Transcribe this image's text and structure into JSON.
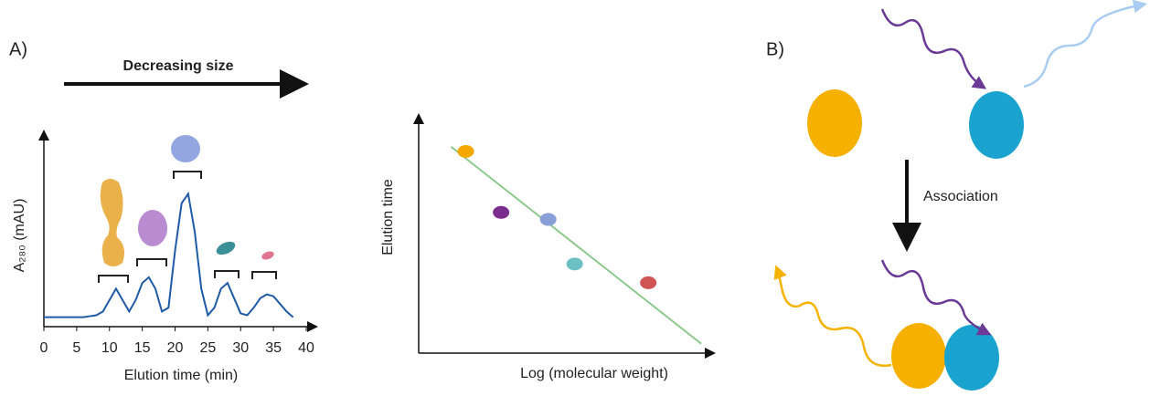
{
  "labels": {
    "panel_a": "A)",
    "panel_b": "B)",
    "size_arrow": "Decreasing size",
    "association": "Association"
  },
  "chart_data": [
    {
      "type": "line",
      "xlabel": "Elution time (min)",
      "ylabel": "A₂₈₀ (mAU)",
      "color": "#1f5aa6",
      "x": [
        0,
        1,
        2,
        3,
        4,
        5,
        6,
        7,
        8,
        9,
        10,
        11,
        12,
        13,
        14,
        15,
        16,
        17,
        18,
        19,
        20,
        21,
        22,
        23,
        24,
        25,
        26,
        27,
        28,
        29,
        30,
        31,
        32,
        33,
        34,
        35,
        36,
        37,
        38
      ],
      "values": [
        0.05,
        0.05,
        0.05,
        0.05,
        0.05,
        0.05,
        0.05,
        0.055,
        0.06,
        0.08,
        0.14,
        0.2,
        0.14,
        0.08,
        0.14,
        0.23,
        0.26,
        0.2,
        0.08,
        0.1,
        0.4,
        0.65,
        0.7,
        0.5,
        0.2,
        0.06,
        0.1,
        0.2,
        0.23,
        0.15,
        0.07,
        0.06,
        0.1,
        0.15,
        0.17,
        0.16,
        0.12,
        0.08,
        0.05
      ],
      "xlim": [
        0,
        40
      ],
      "ylim": [
        0,
        1
      ],
      "xticks": [
        0,
        5,
        10,
        15,
        20,
        25,
        30,
        35,
        40
      ]
    },
    {
      "type": "scatter",
      "xlabel": "Log (molecular weight)",
      "ylabel": "Elution time",
      "x": [
        1.6,
        2.8,
        4.4,
        5.3,
        7.8
      ],
      "values": [
        8.6,
        6.0,
        5.7,
        3.8,
        3.0
      ],
      "colors": [
        "#f5a800",
        "#7b2d8e",
        "#8a9fd8",
        "#6cc0c4",
        "#d05454"
      ],
      "fit": {
        "x": [
          1.1,
          9.6
        ],
        "y": [
          8.8,
          0.4
        ],
        "color": "#8cc88c"
      },
      "xlim": [
        0,
        10
      ],
      "ylim": [
        0,
        10
      ]
    }
  ]
}
